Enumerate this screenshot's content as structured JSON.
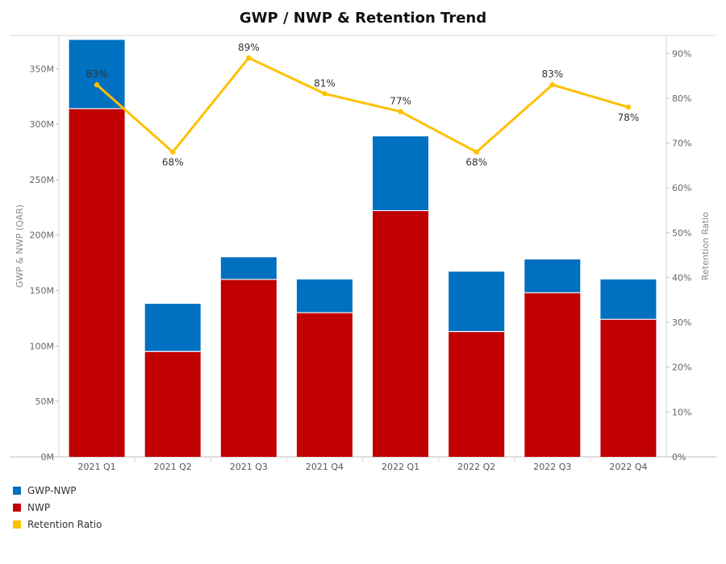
{
  "chart_data": {
    "type": "bar",
    "title": "GWP / NWP & Retention Trend",
    "categories": [
      "2021 Q1",
      "2021 Q2",
      "2021 Q3",
      "2021 Q4",
      "2022 Q1",
      "2022 Q2",
      "2022 Q3",
      "2022 Q4"
    ],
    "stacked": true,
    "series": [
      {
        "name": "NWP",
        "kind": "bar",
        "axis": "left",
        "color": "#C00000",
        "values": [
          314,
          95,
          160,
          130,
          222,
          113,
          148,
          124
        ]
      },
      {
        "name": "GWP-NWP",
        "kind": "bar",
        "axis": "left",
        "color": "#0070C0",
        "values": [
          62,
          43,
          20,
          30,
          67,
          54,
          30,
          36
        ]
      },
      {
        "name": "Retention Ratio",
        "kind": "line",
        "axis": "right",
        "color": "#FFC000",
        "values": [
          83,
          68,
          89,
          81,
          77,
          68,
          83,
          78
        ],
        "labels": [
          "83%",
          "68%",
          "89%",
          "81%",
          "77%",
          "68%",
          "83%",
          "78%"
        ]
      }
    ],
    "ylabel": "GWP & NWP (QAR)",
    "y2label": "Retention Ratio",
    "ylim": [
      0,
      380
    ],
    "y2lim": [
      0,
      94
    ],
    "yticks": [
      0,
      50,
      100,
      150,
      200,
      250,
      300,
      350
    ],
    "yticklabels": [
      "0M",
      "50M",
      "100M",
      "150M",
      "200M",
      "250M",
      "300M",
      "350M"
    ],
    "y2ticks": [
      0,
      10,
      20,
      30,
      40,
      50,
      60,
      70,
      80,
      90
    ],
    "y2ticklabels": [
      "0%",
      "10%",
      "20%",
      "30%",
      "40%",
      "50%",
      "60%",
      "70%",
      "80%",
      "90%"
    ],
    "legend_position": "bottom-left",
    "grid": false
  }
}
